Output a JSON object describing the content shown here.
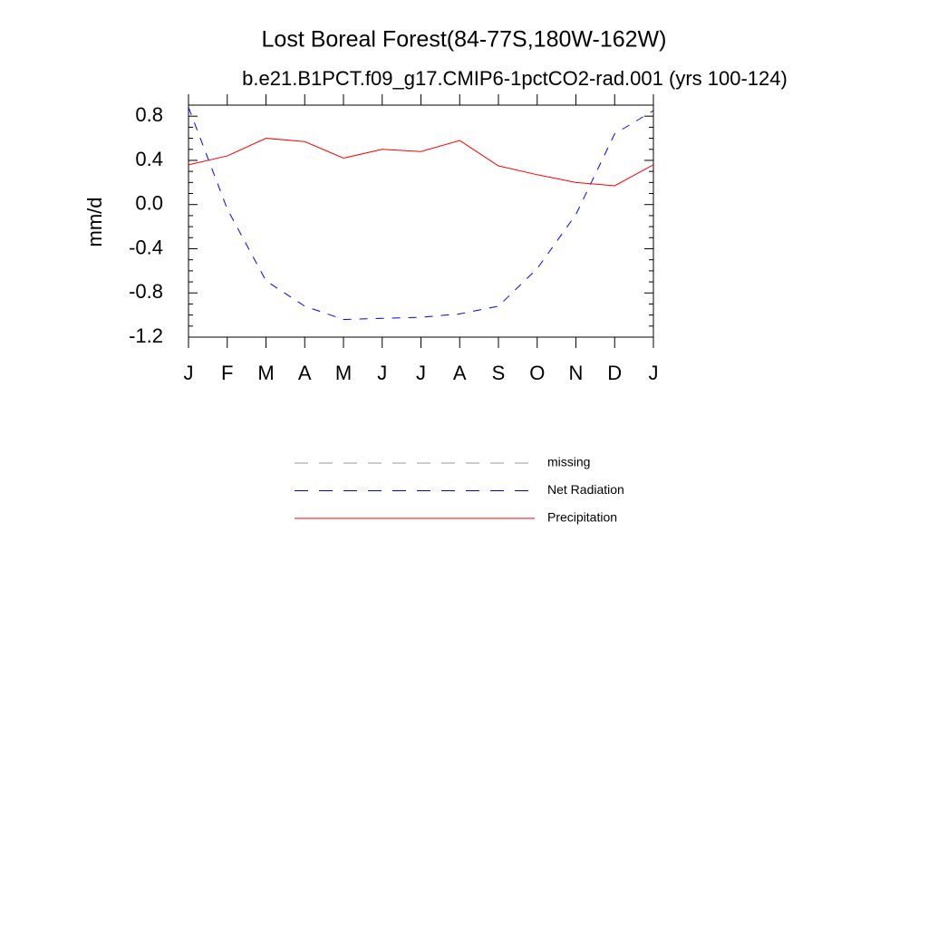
{
  "chart_data": {
    "type": "line",
    "title": "Lost Boreal Forest(84-77S,180W-162W)",
    "subtitle": "b.e21.B1PCT.f09_g17.CMIP6-1pctCO2-rad.001 (yrs 100-124)",
    "y_label": "mm/d",
    "categories": [
      "J",
      "F",
      "M",
      "A",
      "M",
      "J",
      "J",
      "A",
      "S",
      "O",
      "N",
      "D",
      "J"
    ],
    "ylim": [
      -1.2,
      0.9
    ],
    "yticks": [
      {
        "value": 0.8,
        "label": "0.8"
      },
      {
        "value": 0.4,
        "label": "0.4"
      },
      {
        "value": 0,
        "label": "0.0"
      },
      {
        "value": -0.4,
        "label": "-0.4"
      },
      {
        "value": -0.8,
        "label": "-0.8"
      },
      {
        "value": -1.2,
        "label": "-1.2"
      }
    ],
    "series": [
      {
        "name": "missing",
        "color": "#999999",
        "dashed": true,
        "values": [
          null,
          null,
          null,
          null,
          null,
          null,
          null,
          null,
          null,
          null,
          null,
          null,
          null
        ]
      },
      {
        "name": "Net Radiation",
        "color": "#0000ff",
        "dashed": true,
        "values": [
          0.88,
          -0.04,
          -0.69,
          -0.92,
          -1.04,
          -1.03,
          -1.02,
          -0.99,
          -0.92,
          -0.58,
          -0.09,
          0.64,
          0.85
        ]
      },
      {
        "name": "Precipitation",
        "color": "#ff0000",
        "dashed": false,
        "values": [
          0.36,
          0.44,
          0.6,
          0.57,
          0.42,
          0.5,
          0.48,
          0.58,
          0.35,
          0.27,
          0.2,
          0.17,
          0.36
        ]
      }
    ]
  }
}
